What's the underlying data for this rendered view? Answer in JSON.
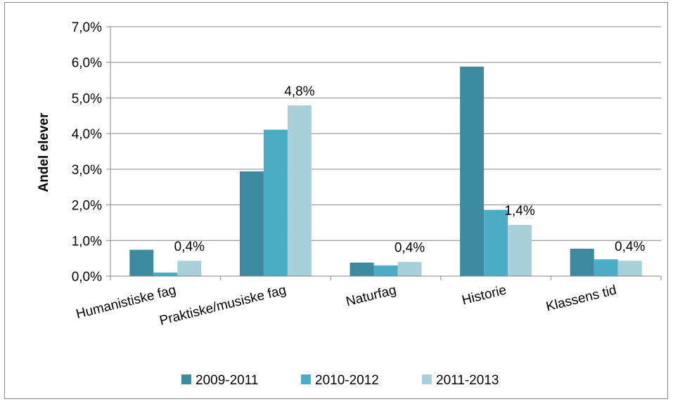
{
  "chart_data": {
    "type": "bar",
    "title": "",
    "xlabel": "",
    "ylabel": "Andel elever",
    "categories": [
      "Humanistiske fag",
      "Praktiske/musiske fag",
      "Naturfag",
      "Historie",
      "Klassens tid"
    ],
    "series": [
      {
        "name": "2009-2011",
        "color": "#3b8aa0",
        "values": [
          0.74,
          2.94,
          0.38,
          5.88,
          0.77
        ]
      },
      {
        "name": "2010-2012",
        "color": "#4bacc6",
        "values": [
          0.1,
          4.11,
          0.3,
          1.86,
          0.47
        ]
      },
      {
        "name": "2011-2013",
        "color": "#a9cfdb",
        "values": [
          0.43,
          4.79,
          0.4,
          1.44,
          0.43
        ]
      }
    ],
    "data_labels": [
      "0,4%",
      "4,8%",
      "0,4%",
      "1,4%",
      "0,4%"
    ],
    "yticks": [
      "0,0%",
      "1,0%",
      "2,0%",
      "3,0%",
      "4,0%",
      "5,0%",
      "6,0%",
      "7,0%"
    ],
    "ylim": [
      0,
      7
    ],
    "grid": true,
    "legend_position": "bottom"
  }
}
